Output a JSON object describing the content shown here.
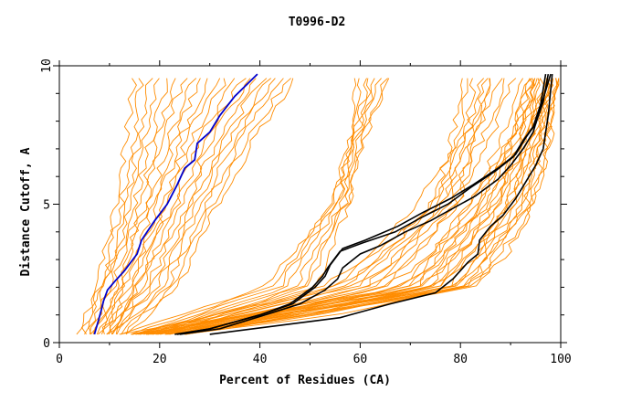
{
  "chart_data": {
    "type": "line",
    "title": "T0996-D2",
    "xlabel": "Percent of Residues (CA)",
    "ylabel": "Distance Cutoff, A",
    "xlim": [
      0,
      100
    ],
    "ylim": [
      0,
      10
    ],
    "x_ticks": [
      0,
      20,
      40,
      60,
      80,
      100
    ],
    "y_ticks": [
      0,
      5,
      10
    ],
    "grid": false,
    "legend": "none",
    "colors": {
      "background_models": "#ff8c00",
      "highlight": "#0000cc",
      "reference": "#000000",
      "axes": "#000000"
    },
    "highlighted_series": [
      {
        "color": "#0000cc",
        "x": [
          7.0,
          7.8,
          8.4,
          8.8,
          9.6,
          11.0,
          13.0,
          15.5,
          16.4,
          17.5,
          19.0,
          21.5,
          23.5,
          25.0,
          27.0,
          27.5,
          30.0,
          32.0,
          35.0,
          39.5
        ],
        "y": [
          0.3,
          0.8,
          1.2,
          1.5,
          1.9,
          2.2,
          2.6,
          3.2,
          3.7,
          4.0,
          4.4,
          5.0,
          5.7,
          6.3,
          6.6,
          7.2,
          7.6,
          8.2,
          8.9,
          9.7
        ]
      },
      {
        "color": "#000000",
        "x": [
          23.0,
          30.0,
          40.0,
          46.0,
          50.5,
          52.5,
          53.5,
          56.0,
          60.5,
          67.0,
          72.0,
          77.5,
          82.0,
          87.0,
          90.5,
          92.5,
          94.5,
          96.0,
          97.0
        ],
        "y": [
          0.3,
          0.5,
          1.0,
          1.4,
          2.0,
          2.4,
          2.7,
          3.3,
          3.6,
          4.0,
          4.5,
          5.0,
          5.6,
          6.2,
          6.7,
          7.3,
          7.8,
          8.6,
          9.7
        ]
      },
      {
        "color": "#000000",
        "x": [
          23.5,
          30.0,
          40.0,
          46.5,
          51.0,
          53.0,
          54.0,
          56.5,
          61.0,
          67.5,
          72.5,
          78.0,
          82.5,
          87.5,
          91.0,
          93.0,
          95.0,
          96.5,
          97.5
        ],
        "y": [
          0.3,
          0.5,
          1.0,
          1.4,
          2.0,
          2.4,
          2.8,
          3.4,
          3.7,
          4.2,
          4.7,
          5.2,
          5.7,
          6.3,
          6.8,
          7.4,
          7.9,
          8.7,
          9.7
        ]
      },
      {
        "color": "#000000",
        "x": [
          24.0,
          32.0,
          41.0,
          48.0,
          53.0,
          55.5,
          56.5,
          60.0,
          64.0,
          69.0,
          74.0,
          78.0,
          83.0,
          87.5,
          90.0,
          92.5,
          94.5,
          96.0,
          98.0
        ],
        "y": [
          0.3,
          0.5,
          1.0,
          1.4,
          1.9,
          2.3,
          2.7,
          3.2,
          3.5,
          4.0,
          4.4,
          4.8,
          5.3,
          5.9,
          6.4,
          7.0,
          7.6,
          8.5,
          9.7
        ]
      },
      {
        "color": "#000000",
        "x": [
          30.0,
          43.0,
          56.0,
          66.0,
          75.0,
          78.5,
          81.5,
          83.5,
          83.8,
          86.0,
          88.5,
          91.0,
          93.0,
          95.0,
          96.5,
          97.0,
          97.5,
          98.3
        ],
        "y": [
          0.3,
          0.6,
          0.9,
          1.4,
          1.8,
          2.3,
          2.9,
          3.2,
          3.7,
          4.2,
          4.6,
          5.2,
          5.8,
          6.4,
          7.0,
          7.6,
          8.2,
          9.7
        ]
      }
    ],
    "background_families": [
      {
        "name": "left",
        "count": 14,
        "x_at_y": [
          [
            0.3,
            4,
            11
          ],
          [
            2.0,
            7,
            16
          ],
          [
            5.0,
            11,
            24
          ],
          [
            7.5,
            13,
            30
          ],
          [
            9.7,
            14,
            38
          ]
        ]
      },
      {
        "name": "middle-left",
        "count": 8,
        "x_at_y": [
          [
            0.3,
            8,
            14
          ],
          [
            2.0,
            16,
            24
          ],
          [
            5.0,
            24,
            32
          ],
          [
            7.5,
            30,
            40
          ],
          [
            9.7,
            38,
            48
          ]
        ]
      },
      {
        "name": "middle",
        "count": 8,
        "x_at_y": [
          [
            0.3,
            12,
            22
          ],
          [
            2.0,
            40,
            52
          ],
          [
            5.0,
            54,
            58
          ],
          [
            7.5,
            58,
            61
          ],
          [
            9.7,
            59,
            67
          ]
        ]
      },
      {
        "name": "right-upper",
        "count": 6,
        "x_at_y": [
          [
            0.3,
            14,
            24
          ],
          [
            2.0,
            54,
            66
          ],
          [
            5.0,
            74,
            80
          ],
          [
            7.5,
            78,
            84
          ],
          [
            9.7,
            80,
            87
          ]
        ]
      },
      {
        "name": "right",
        "count": 16,
        "x_at_y": [
          [
            0.3,
            14,
            26
          ],
          [
            2.0,
            68,
            84
          ],
          [
            5.0,
            82,
            95
          ],
          [
            7.5,
            90,
            98
          ],
          [
            9.7,
            94,
            100
          ]
        ]
      },
      {
        "name": "lower-fan",
        "count": 10,
        "x_at_y": [
          [
            0.3,
            12,
            26
          ],
          [
            1.0,
            30,
            56
          ],
          [
            2.0,
            50,
            82
          ],
          [
            3.0,
            60,
            90
          ],
          [
            5.0,
            70,
            96
          ],
          [
            7.5,
            80,
            99
          ],
          [
            9.7,
            86,
            100
          ]
        ]
      }
    ]
  }
}
